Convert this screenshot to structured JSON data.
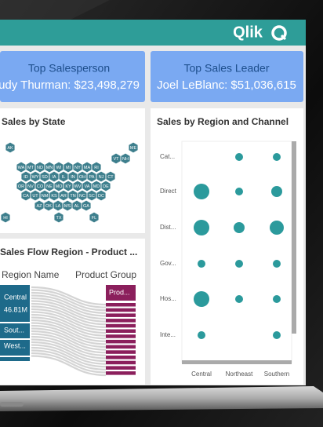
{
  "header": {
    "logo": "Qlik"
  },
  "kpis": [
    {
      "title": "Top Salesperson",
      "value": "udy Thurman: $23,498,279"
    },
    {
      "title": "Top Sales Leader",
      "value": "Joel LeBlanc: $51,036,615"
    }
  ],
  "map": {
    "title": "Sales by State",
    "rows": [
      [
        "AK",
        "ME"
      ],
      [
        "VT",
        "NH"
      ],
      [
        "WA",
        "MT",
        "ND",
        "MN",
        "WI",
        "MI",
        "NY",
        "MA",
        "RI"
      ],
      [
        "ID",
        "WY",
        "SD",
        "IA",
        "IL",
        "IN",
        "OH",
        "PA",
        "NJ",
        "CT"
      ],
      [
        "OR",
        "NV",
        "CO",
        "NE",
        "MO",
        "KY",
        "WV",
        "VA",
        "MD",
        "DE"
      ],
      [
        "CA",
        "UT",
        "NM",
        "KS",
        "AR",
        "TN",
        "NC",
        "SC",
        "DC"
      ],
      [
        "AZ",
        "OK",
        "LA",
        "MS",
        "AL",
        "GA"
      ],
      [
        "HI",
        "TX",
        "FL"
      ]
    ]
  },
  "sankey": {
    "title": "Sales Flow Region - Product ...",
    "left_header": "Region Name",
    "right_header": "Product Group",
    "left_nodes": [
      "Central",
      "Sout...",
      "West..."
    ],
    "left_value": "46.81M",
    "right_nodes": [
      "Prod..."
    ]
  },
  "bubble_chart": {
    "title": "Sales by Region and Channel",
    "channels": [
      "Cat...",
      "Direct",
      "Dist...",
      "Gov...",
      "Hos...",
      "Inte..."
    ],
    "regions": [
      "Central",
      "Northeast",
      "Southern"
    ],
    "sizes": [
      [
        null,
        5,
        5
      ],
      [
        10,
        5,
        7
      ],
      [
        10,
        7,
        9
      ],
      [
        5,
        5,
        5
      ],
      [
        10,
        5,
        5
      ],
      [
        5,
        null,
        5
      ]
    ]
  }
}
